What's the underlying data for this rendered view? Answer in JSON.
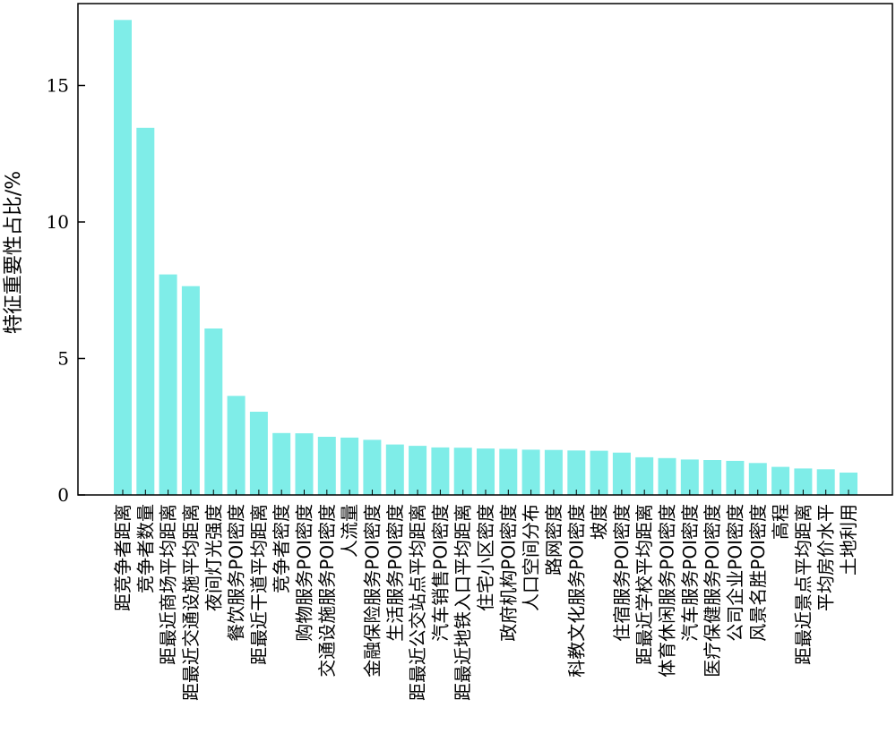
{
  "chart_data": {
    "type": "bar",
    "title": "",
    "xlabel": "",
    "ylabel": "特征重要性占比/%",
    "ylim": [
      0,
      18
    ],
    "yticks": [
      0,
      5,
      10,
      15
    ],
    "grid": false,
    "bar_color": "#7FEDE8",
    "categories": [
      "距竞争者距离",
      "竞争者数量",
      "距最近商场平均距离",
      "距最近交通设施平均距离",
      "夜间灯光强度",
      "餐饮服务POI密度",
      "距最近干道平均距离",
      "竞争者密度",
      "购物服务POI密度",
      "交通设施服务POI密度",
      "人流量",
      "金融保险服务POI密度",
      "生活服务POI密度",
      "距最近公交站点平均距离",
      "汽车销售POI密度",
      "距最近地铁入口平均距离",
      "住宅小区密度",
      "政府机构POI密度",
      "人口空间分布",
      "路网密度",
      "科教文化服务POI密度",
      "坡度",
      "住宿服务POI密度",
      "距最近学校平均距离",
      "体育休闲服务POI密度",
      "汽车服务POI密度",
      "医疗保健服务POI密度",
      "公司企业POI密度",
      "风景名胜POI密度",
      "高程",
      "距最近景点平均距离",
      "平均房价水平",
      "土地利用"
    ],
    "values": [
      17.4,
      13.45,
      8.08,
      7.65,
      6.1,
      3.63,
      3.05,
      2.27,
      2.26,
      2.13,
      2.1,
      2.02,
      1.85,
      1.8,
      1.74,
      1.73,
      1.7,
      1.69,
      1.66,
      1.65,
      1.63,
      1.62,
      1.55,
      1.38,
      1.35,
      1.3,
      1.28,
      1.25,
      1.17,
      1.03,
      0.97,
      0.94,
      0.82
    ]
  }
}
